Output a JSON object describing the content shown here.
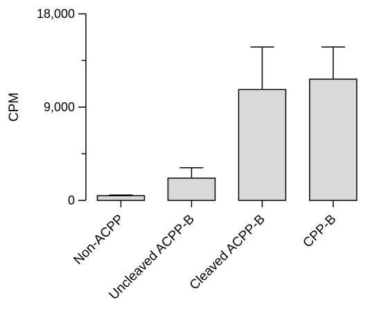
{
  "chart_data": {
    "type": "bar",
    "title": "",
    "xlabel": "",
    "ylabel": "CPM",
    "ylim": [
      0,
      18000
    ],
    "y_ticks": [
      0,
      9000,
      18000
    ],
    "y_tick_labels": [
      "0",
      "9,000",
      "18,000"
    ],
    "categories": [
      "Non-ACPP",
      "Uncleaved ACPP-B",
      "Cleaved ACPP-B",
      "CPP-B"
    ],
    "values": [
      450,
      2150,
      10700,
      11700
    ],
    "error_upper": [
      520,
      3150,
      14800,
      14800
    ],
    "grid": false,
    "bar_color": "#d9d9d9",
    "edge_color": "#000000"
  }
}
